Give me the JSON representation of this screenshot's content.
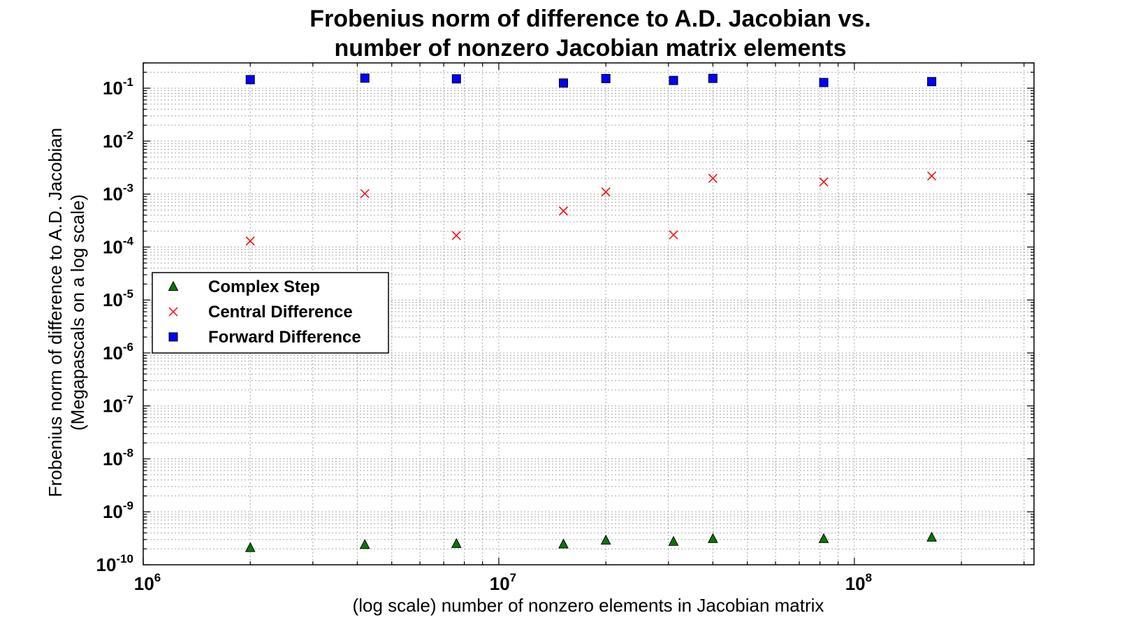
{
  "chart_data": {
    "type": "scatter",
    "title_lines": [
      "Frobenius norm of difference to A.D. Jacobian vs.",
      "number of nonzero Jacobian matrix elements"
    ],
    "xlabel": "(log scale) number of nonzero elements in Jacobian matrix",
    "ylabel_lines": [
      "Frobenius norm of difference to A.D. Jacobian",
      "(Megapascals on a log scale)"
    ],
    "x_scale": "log",
    "y_scale": "log",
    "xlim": [
      1000000,
      320000000
    ],
    "ylim": [
      1e-10,
      0.3
    ],
    "x_ticks": [
      {
        "value": 1000000,
        "base": "10",
        "exp": "6"
      },
      {
        "value": 10000000,
        "base": "10",
        "exp": "7"
      },
      {
        "value": 100000000,
        "base": "10",
        "exp": "8"
      }
    ],
    "y_ticks": [
      {
        "value": 1e-10,
        "base": "10",
        "exp": "-10"
      },
      {
        "value": 1e-09,
        "base": "10",
        "exp": "-9"
      },
      {
        "value": 1e-08,
        "base": "10",
        "exp": "-8"
      },
      {
        "value": 1e-07,
        "base": "10",
        "exp": "-7"
      },
      {
        "value": 1e-06,
        "base": "10",
        "exp": "-6"
      },
      {
        "value": 1e-05,
        "base": "10",
        "exp": "-5"
      },
      {
        "value": 0.0001,
        "base": "10",
        "exp": "-4"
      },
      {
        "value": 0.001,
        "base": "10",
        "exp": "-3"
      },
      {
        "value": 0.01,
        "base": "10",
        "exp": "-2"
      },
      {
        "value": 0.1,
        "base": "10",
        "exp": "-1"
      }
    ],
    "grid": true,
    "legend_position": "center-left",
    "series": [
      {
        "name": "Complex Step",
        "marker": "triangle",
        "color": "#007a00",
        "points": [
          {
            "x": 2000000,
            "y": 2.1e-10
          },
          {
            "x": 4200000,
            "y": 2.4e-10
          },
          {
            "x": 7600000,
            "y": 2.5e-10
          },
          {
            "x": 15200000,
            "y": 2.45e-10
          },
          {
            "x": 20000000,
            "y": 2.9e-10
          },
          {
            "x": 31000000,
            "y": 2.75e-10
          },
          {
            "x": 40000000,
            "y": 3.1e-10
          },
          {
            "x": 82000000,
            "y": 3.1e-10
          },
          {
            "x": 165000000,
            "y": 3.3e-10
          }
        ]
      },
      {
        "name": "Central Difference",
        "marker": "x",
        "color": "#ff0000",
        "points": [
          {
            "x": 2000000,
            "y": 0.00013
          },
          {
            "x": 4200000,
            "y": 0.00102
          },
          {
            "x": 7600000,
            "y": 0.000165
          },
          {
            "x": 15200000,
            "y": 0.00048
          },
          {
            "x": 20000000,
            "y": 0.0011
          },
          {
            "x": 31000000,
            "y": 0.00017
          },
          {
            "x": 40000000,
            "y": 0.00198
          },
          {
            "x": 82000000,
            "y": 0.0017
          },
          {
            "x": 165000000,
            "y": 0.0022
          }
        ]
      },
      {
        "name": "Forward Difference",
        "marker": "square",
        "color": "#0000ff",
        "points": [
          {
            "x": 2000000,
            "y": 0.145
          },
          {
            "x": 4200000,
            "y": 0.155
          },
          {
            "x": 7600000,
            "y": 0.15
          },
          {
            "x": 15200000,
            "y": 0.125
          },
          {
            "x": 20000000,
            "y": 0.152
          },
          {
            "x": 31000000,
            "y": 0.14
          },
          {
            "x": 40000000,
            "y": 0.153
          },
          {
            "x": 82000000,
            "y": 0.128
          },
          {
            "x": 165000000,
            "y": 0.133
          }
        ]
      }
    ]
  }
}
